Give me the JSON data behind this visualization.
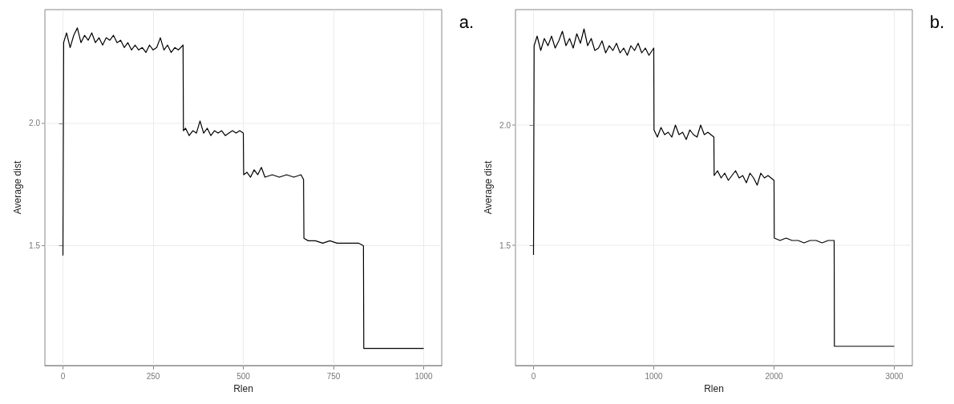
{
  "chart_data": [
    {
      "type": "line",
      "xlabel": "Rlen",
      "ylabel": "Average dist",
      "annotations": [
        "a."
      ],
      "xlim": [
        -50,
        1050
      ],
      "ylim": [
        1.01,
        2.465
      ],
      "xticks": [
        0,
        250,
        500,
        750,
        1000
      ],
      "yticks": [
        1.5,
        {
          "value": 2,
          "label": "2.0"
        }
      ],
      "grid": true,
      "line_style": "solid",
      "marker": "none",
      "series": [
        {
          "color": "#000000",
          "x": [
            0,
            2,
            10,
            20,
            30,
            40,
            50,
            60,
            70,
            80,
            90,
            100,
            110,
            120,
            130,
            140,
            150,
            160,
            170,
            180,
            190,
            200,
            210,
            220,
            230,
            240,
            250,
            260,
            270,
            280,
            290,
            300,
            310,
            320,
            333,
            334,
            340,
            350,
            360,
            370,
            380,
            390,
            400,
            410,
            420,
            430,
            440,
            450,
            460,
            470,
            480,
            490,
            500,
            501,
            510,
            520,
            530,
            540,
            550,
            560,
            580,
            600,
            620,
            640,
            660,
            667,
            668,
            680,
            700,
            720,
            740,
            760,
            780,
            800,
            820,
            833,
            834,
            850,
            900,
            950,
            1000
          ],
          "values": [
            1.46,
            2.33,
            2.37,
            2.31,
            2.36,
            2.39,
            2.33,
            2.36,
            2.34,
            2.37,
            2.33,
            2.35,
            2.32,
            2.35,
            2.34,
            2.36,
            2.33,
            2.34,
            2.31,
            2.33,
            2.3,
            2.32,
            2.3,
            2.31,
            2.29,
            2.32,
            2.3,
            2.31,
            2.35,
            2.3,
            2.32,
            2.29,
            2.31,
            2.3,
            2.32,
            1.97,
            1.98,
            1.95,
            1.97,
            1.96,
            2.01,
            1.96,
            1.98,
            1.95,
            1.97,
            1.96,
            1.97,
            1.95,
            1.96,
            1.97,
            1.96,
            1.97,
            1.96,
            1.79,
            1.8,
            1.78,
            1.81,
            1.79,
            1.82,
            1.78,
            1.79,
            1.78,
            1.79,
            1.78,
            1.79,
            1.77,
            1.53,
            1.52,
            1.52,
            1.51,
            1.52,
            1.51,
            1.51,
            1.51,
            1.51,
            1.5,
            1.08,
            1.08,
            1.08,
            1.08,
            1.08
          ]
        }
      ]
    },
    {
      "type": "line",
      "xlabel": "Rlen",
      "ylabel": "Average dist",
      "annotations": [
        "b."
      ],
      "xlim": [
        -150,
        3150
      ],
      "ylim": [
        1.0,
        2.48
      ],
      "xticks": [
        0,
        1000,
        2000,
        3000
      ],
      "yticks": [
        1.5,
        {
          "value": 2,
          "label": "2.0"
        }
      ],
      "grid": true,
      "line_style": "solid",
      "marker": "none",
      "series": [
        {
          "color": "#000000",
          "x": [
            0,
            5,
            30,
            60,
            90,
            120,
            150,
            180,
            210,
            240,
            270,
            300,
            330,
            360,
            390,
            420,
            450,
            480,
            510,
            540,
            570,
            600,
            630,
            660,
            690,
            720,
            750,
            780,
            810,
            840,
            870,
            900,
            930,
            960,
            1000,
            1002,
            1030,
            1060,
            1090,
            1120,
            1150,
            1180,
            1210,
            1240,
            1270,
            1300,
            1330,
            1360,
            1390,
            1420,
            1450,
            1500,
            1502,
            1530,
            1560,
            1590,
            1620,
            1650,
            1680,
            1710,
            1740,
            1770,
            1800,
            1830,
            1860,
            1890,
            1920,
            1950,
            2000,
            2002,
            2050,
            2100,
            2150,
            2200,
            2250,
            2300,
            2350,
            2400,
            2450,
            2500,
            2502,
            2600,
            2700,
            2800,
            2900,
            3000
          ],
          "values": [
            1.46,
            2.33,
            2.37,
            2.31,
            2.36,
            2.33,
            2.37,
            2.32,
            2.35,
            2.39,
            2.33,
            2.36,
            2.32,
            2.38,
            2.34,
            2.4,
            2.33,
            2.36,
            2.31,
            2.32,
            2.35,
            2.3,
            2.33,
            2.31,
            2.34,
            2.3,
            2.32,
            2.29,
            2.33,
            2.31,
            2.34,
            2.3,
            2.32,
            2.29,
            2.32,
            1.98,
            1.95,
            1.99,
            1.96,
            1.97,
            1.95,
            2.0,
            1.96,
            1.97,
            1.94,
            1.98,
            1.96,
            1.95,
            2.0,
            1.96,
            1.97,
            1.95,
            1.79,
            1.81,
            1.78,
            1.8,
            1.77,
            1.79,
            1.81,
            1.78,
            1.79,
            1.76,
            1.8,
            1.78,
            1.75,
            1.8,
            1.78,
            1.79,
            1.77,
            1.53,
            1.52,
            1.53,
            1.52,
            1.52,
            1.51,
            1.52,
            1.52,
            1.51,
            1.52,
            1.52,
            1.08,
            1.08,
            1.08,
            1.08,
            1.08,
            1.08
          ]
        }
      ]
    }
  ]
}
